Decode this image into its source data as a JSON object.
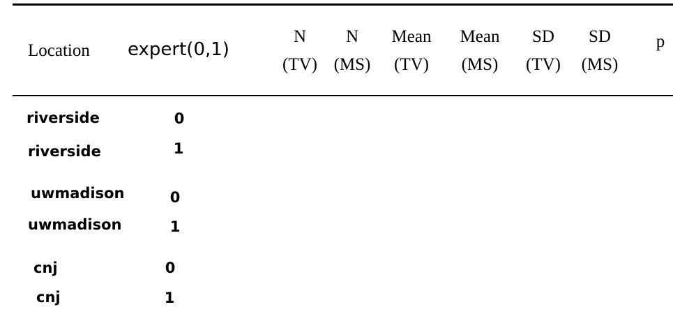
{
  "table": {
    "header": [
      "Location",
      "expert(0,1)",
      [
        "N",
        "(TV)"
      ],
      [
        "N",
        "(MS)"
      ],
      [
        "Mean",
        "(TV)"
      ],
      [
        "Mean",
        "(MS)"
      ],
      [
        "SD",
        "(TV)"
      ],
      [
        "SD",
        "(MS)"
      ],
      "p"
    ],
    "rows": [
      [
        "riverside",
        "0"
      ],
      [
        "riverside",
        "1"
      ],
      [
        "uwmadison",
        "0"
      ],
      [
        "uwmadison",
        "1"
      ],
      [
        "cnj",
        "0"
      ],
      [
        "cnj",
        "1"
      ]
    ]
  }
}
